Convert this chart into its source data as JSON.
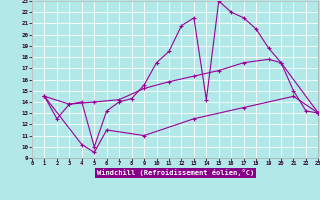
{
  "bg_color": "#b2e8e8",
  "grid_color": "#c0d8d8",
  "line_color": "#990099",
  "xlabel": "Windchill (Refroidissement éolien,°C)",
  "xlabel_bg": "#880088",
  "xlabel_fg": "#ffffff",
  "xlim": [
    0,
    23
  ],
  "ylim": [
    9,
    23
  ],
  "xticks": [
    0,
    1,
    2,
    3,
    4,
    5,
    6,
    7,
    8,
    9,
    10,
    11,
    12,
    13,
    14,
    15,
    16,
    17,
    18,
    19,
    20,
    21,
    22,
    23
  ],
  "yticks": [
    9,
    10,
    11,
    12,
    13,
    14,
    15,
    16,
    17,
    18,
    19,
    20,
    21,
    22,
    23
  ],
  "line1_x": [
    1,
    2,
    3,
    4,
    5,
    6,
    7,
    8,
    9,
    10,
    11,
    12,
    13,
    14,
    15,
    16,
    17,
    18,
    19,
    20,
    21,
    22,
    23
  ],
  "line1_y": [
    14.5,
    12.5,
    13.8,
    14.0,
    10.0,
    13.2,
    14.0,
    14.3,
    15.5,
    17.5,
    18.5,
    20.8,
    21.5,
    14.2,
    23.0,
    22.0,
    21.5,
    20.5,
    18.8,
    17.5,
    15.0,
    13.2,
    13.0
  ],
  "line2_x": [
    1,
    3,
    5,
    7,
    9,
    11,
    13,
    15,
    17,
    19,
    20,
    23
  ],
  "line2_y": [
    14.5,
    13.8,
    14.0,
    14.2,
    15.2,
    15.8,
    16.3,
    16.8,
    17.5,
    17.8,
    17.5,
    13.0
  ],
  "line3_x": [
    1,
    4,
    5,
    6,
    9,
    13,
    17,
    21,
    23
  ],
  "line3_y": [
    14.5,
    10.2,
    9.5,
    11.5,
    11.0,
    12.5,
    13.5,
    14.5,
    13.0
  ]
}
